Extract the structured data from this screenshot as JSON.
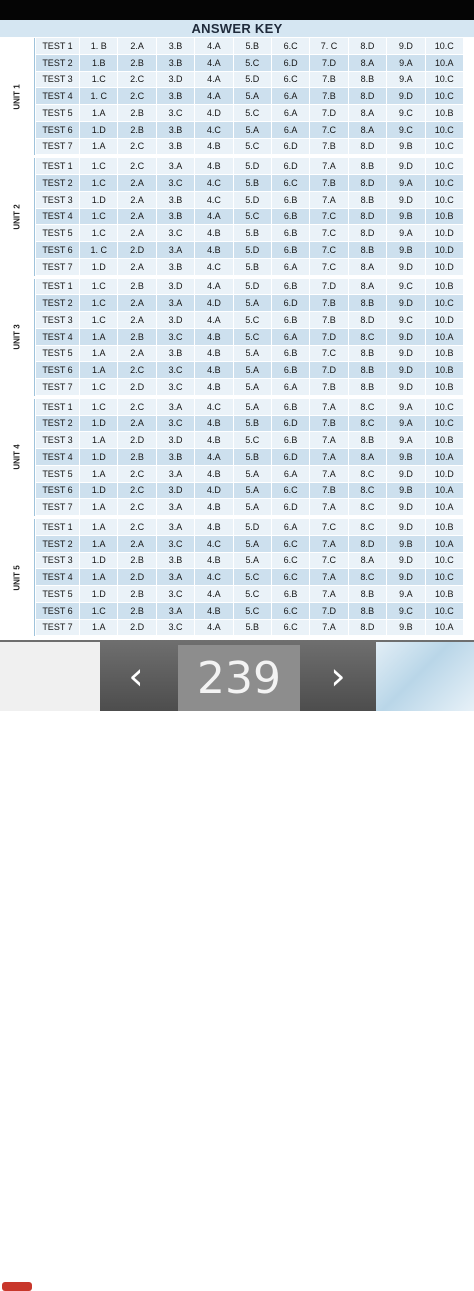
{
  "header": {
    "title": "ANSWER KEY"
  },
  "units": [
    {
      "label": "UNIT 1",
      "tests": [
        {
          "name": "TEST 1",
          "answers": [
            "1. B",
            "2.A",
            "3.B",
            "4.A",
            "5.B",
            "6.C",
            "7. C",
            "8.D",
            "9.D",
            "10.C"
          ]
        },
        {
          "name": "TEST 2",
          "answers": [
            "1.B",
            "2.B",
            "3.B",
            "4.A",
            "5.C",
            "6.D",
            "7.D",
            "8.A",
            "9.A",
            "10.A"
          ]
        },
        {
          "name": "TEST 3",
          "answers": [
            "1.C",
            "2.C",
            "3.D",
            "4.A",
            "5.D",
            "6.C",
            "7.B",
            "8.B",
            "9.A",
            "10.C"
          ]
        },
        {
          "name": "TEST 4",
          "answers": [
            "1. C",
            "2.C",
            "3.B",
            "4.A",
            "5.A",
            "6.A",
            "7.B",
            "8.D",
            "9.D",
            "10.C"
          ]
        },
        {
          "name": "TEST 5",
          "answers": [
            "1.A",
            "2.B",
            "3.C",
            "4.D",
            "5.C",
            "6.A",
            "7.D",
            "8.A",
            "9.C",
            "10.B"
          ]
        },
        {
          "name": "TEST 6",
          "answers": [
            "1.D",
            "2.B",
            "3.B",
            "4.C",
            "5.A",
            "6.A",
            "7.C",
            "8.A",
            "9.C",
            "10.C"
          ]
        },
        {
          "name": "TEST 7",
          "answers": [
            "1.A",
            "2.C",
            "3.B",
            "4.B",
            "5.C",
            "6.D",
            "7.B",
            "8.D",
            "9.B",
            "10.C"
          ]
        }
      ]
    },
    {
      "label": "UNIT 2",
      "tests": [
        {
          "name": "TEST 1",
          "answers": [
            "1.C",
            "2.C",
            "3.A",
            "4.B",
            "5.D",
            "6.D",
            "7.A",
            "8.B",
            "9.D",
            "10.C"
          ]
        },
        {
          "name": "TEST 2",
          "answers": [
            "1.C",
            "2.A",
            "3.C",
            "4.C",
            "5.B",
            "6.C",
            "7.B",
            "8.D",
            "9.A",
            "10.C"
          ]
        },
        {
          "name": "TEST 3",
          "answers": [
            "1.D",
            "2.A",
            "3.B",
            "4.C",
            "5.D",
            "6.B",
            "7.A",
            "8.B",
            "9.D",
            "10.C"
          ]
        },
        {
          "name": "TEST 4",
          "answers": [
            "1.C",
            "2.A",
            "3.B",
            "4.A",
            "5.C",
            "6.B",
            "7.C",
            "8.D",
            "9.B",
            "10.B"
          ]
        },
        {
          "name": "TEST 5",
          "answers": [
            "1.C",
            "2.A",
            "3.C",
            "4.B",
            "5.B",
            "6.B",
            "7.C",
            "8.D",
            "9.A",
            "10.D"
          ]
        },
        {
          "name": "TEST 6",
          "answers": [
            "1. C",
            "2.D",
            "3.A",
            "4.B",
            "5.D",
            "6.B",
            "7.C",
            "8.B",
            "9.B",
            "10.D"
          ]
        },
        {
          "name": "TEST 7",
          "answers": [
            "1.D",
            "2.A",
            "3.B",
            "4.C",
            "5.B",
            "6.A",
            "7.C",
            "8.A",
            "9.D",
            "10.D"
          ]
        }
      ]
    },
    {
      "label": "UNIT 3",
      "tests": [
        {
          "name": "TEST 1",
          "answers": [
            "1.C",
            "2.B",
            "3.D",
            "4.A",
            "5.D",
            "6.B",
            "7.D",
            "8.A",
            "9.C",
            "10.B"
          ]
        },
        {
          "name": "TEST 2",
          "answers": [
            "1.C",
            "2.A",
            "3.A",
            "4.D",
            "5.A",
            "6.D",
            "7.B",
            "8.B",
            "9.D",
            "10.C"
          ]
        },
        {
          "name": "TEST 3",
          "answers": [
            "1.C",
            "2.A",
            "3.D",
            "4.A",
            "5.C",
            "6.B",
            "7.B",
            "8.D",
            "9.C",
            "10.D"
          ]
        },
        {
          "name": "TEST 4",
          "answers": [
            "1.A",
            "2.B",
            "3.C",
            "4.B",
            "5.C",
            "6.A",
            "7.D",
            "8.C",
            "9.D",
            "10.A"
          ]
        },
        {
          "name": "TEST 5",
          "answers": [
            "1.A",
            "2.A",
            "3.B",
            "4.B",
            "5.A",
            "6.B",
            "7.C",
            "8.B",
            "9.D",
            "10.B"
          ]
        },
        {
          "name": "TEST 6",
          "answers": [
            "1.A",
            "2.C",
            "3.C",
            "4.B",
            "5.A",
            "6.B",
            "7.D",
            "8.B",
            "9.D",
            "10.B"
          ]
        },
        {
          "name": "TEST 7",
          "answers": [
            "1.C",
            "2.D",
            "3.C",
            "4.B",
            "5.A",
            "6.A",
            "7.B",
            "8.B",
            "9.D",
            "10.B"
          ]
        }
      ]
    },
    {
      "label": "UNIT 4",
      "tests": [
        {
          "name": "TEST 1",
          "answers": [
            "1.C",
            "2.C",
            "3.A",
            "4.C",
            "5.A",
            "6.B",
            "7.A",
            "8.C",
            "9.A",
            "10.C"
          ]
        },
        {
          "name": "TEST 2",
          "answers": [
            "1.D",
            "2.A",
            "3.C",
            "4.B",
            "5.B",
            "6.D",
            "7.B",
            "8.C",
            "9.A",
            "10.C"
          ]
        },
        {
          "name": "TEST 3",
          "answers": [
            "1.A",
            "2.D",
            "3.D",
            "4.B",
            "5.C",
            "6.B",
            "7.A",
            "8.B",
            "9.A",
            "10.B"
          ]
        },
        {
          "name": "TEST 4",
          "answers": [
            "1.D",
            "2.B",
            "3.B",
            "4.A",
            "5.B",
            "6.D",
            "7.A",
            "8.A",
            "9.B",
            "10.A"
          ]
        },
        {
          "name": "TEST 5",
          "answers": [
            "1.A",
            "2.C",
            "3.A",
            "4.B",
            "5.A",
            "6.A",
            "7.A",
            "8.C",
            "9.D",
            "10.D"
          ]
        },
        {
          "name": "TEST 6",
          "answers": [
            "1.D",
            "2.C",
            "3.D",
            "4.D",
            "5.A",
            "6.C",
            "7.B",
            "8.C",
            "9.B",
            "10.A"
          ]
        },
        {
          "name": "TEST 7",
          "answers": [
            "1.A",
            "2.C",
            "3.A",
            "4.B",
            "5.A",
            "6.D",
            "7.A",
            "8.C",
            "9.D",
            "10.A"
          ]
        }
      ]
    },
    {
      "label": "UNIT 5",
      "tests": [
        {
          "name": "TEST 1",
          "answers": [
            "1.A",
            "2.C",
            "3.A",
            "4.B",
            "5.D",
            "6.A",
            "7.C",
            "8.C",
            "9.D",
            "10.B"
          ]
        },
        {
          "name": "TEST 2",
          "answers": [
            "1.A",
            "2.A",
            "3.C",
            "4.C",
            "5.A",
            "6.C",
            "7.A",
            "8.D",
            "9.B",
            "10.A"
          ]
        },
        {
          "name": "TEST 3",
          "answers": [
            "1.D",
            "2.B",
            "3.B",
            "4.B",
            "5.A",
            "6.C",
            "7.C",
            "8.A",
            "9.D",
            "10.C"
          ]
        },
        {
          "name": "TEST 4",
          "answers": [
            "1.A",
            "2.D",
            "3.A",
            "4.C",
            "5.C",
            "6.C",
            "7.A",
            "8.C",
            "9.D",
            "10.C"
          ]
        },
        {
          "name": "TEST 5",
          "answers": [
            "1.D",
            "2.B",
            "3.C",
            "4.A",
            "5.C",
            "6.B",
            "7.A",
            "8.B",
            "9.A",
            "10.B"
          ]
        },
        {
          "name": "TEST 6",
          "answers": [
            "1.C",
            "2.B",
            "3.A",
            "4.B",
            "5.C",
            "6.C",
            "7.D",
            "8.B",
            "9.C",
            "10.C"
          ]
        },
        {
          "name": "TEST 7",
          "answers": [
            "1.A",
            "2.D",
            "3.C",
            "4.A",
            "5.B",
            "6.C",
            "7.A",
            "8.D",
            "9.B",
            "10.A"
          ]
        }
      ]
    }
  ],
  "pager": {
    "page_number": "239",
    "prev_icon": "chevron-left-icon",
    "next_icon": "chevron-right-icon"
  },
  "colors": {
    "title_bg": "#d5e6f2",
    "row_light": "#eaf2f8",
    "row_dark": "#cde0ee",
    "bar_bg": "#5e5e5e"
  }
}
